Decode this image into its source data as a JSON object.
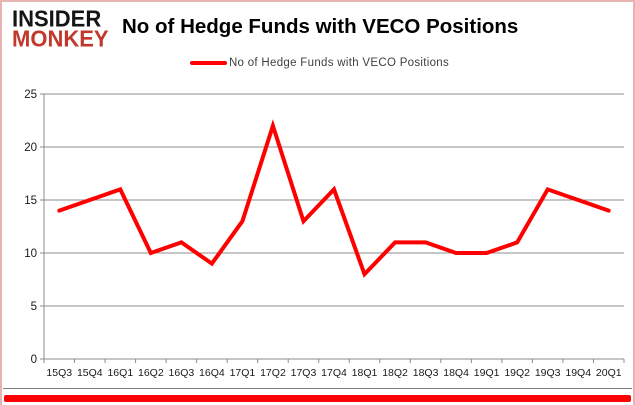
{
  "header": {
    "logo_line1": "INSIDER",
    "logo_line2": "MONKEY",
    "logo_line1_color": "#151515",
    "logo_line2_color": "#c0392b",
    "title": "No of Hedge Funds with VECO Positions"
  },
  "legend": {
    "label": "No of Hedge Funds with VECO Positions",
    "swatch_color": "#ff0000",
    "position": "top-center"
  },
  "chart_data": {
    "type": "line",
    "title": "No of Hedge Funds with VECO Positions",
    "categories": [
      "15Q3",
      "15Q4",
      "16Q1",
      "16Q2",
      "16Q3",
      "16Q4",
      "17Q1",
      "17Q2",
      "17Q3",
      "17Q4",
      "18Q1",
      "18Q2",
      "18Q3",
      "18Q4",
      "19Q1",
      "19Q2",
      "19Q3",
      "19Q4",
      "20Q1"
    ],
    "values": [
      14,
      15,
      16,
      10,
      11,
      9,
      13,
      22,
      13,
      16,
      8,
      11,
      11,
      10,
      10,
      11,
      16,
      15,
      14
    ],
    "xlabel": "",
    "ylabel": "",
    "ylim": [
      0,
      25
    ],
    "ytick_step": 5,
    "yticks": [
      0,
      5,
      10,
      15,
      20,
      25
    ],
    "grid": "horizontal",
    "legend_position": "top-center",
    "line_color": "#ff0000",
    "line_width": 4,
    "grid_color": "#8c8c8c",
    "axis_color": "#8c8c8c",
    "tick_label_color": "#1a1a1a"
  },
  "footer": {
    "bar_color": "#fe0202"
  }
}
